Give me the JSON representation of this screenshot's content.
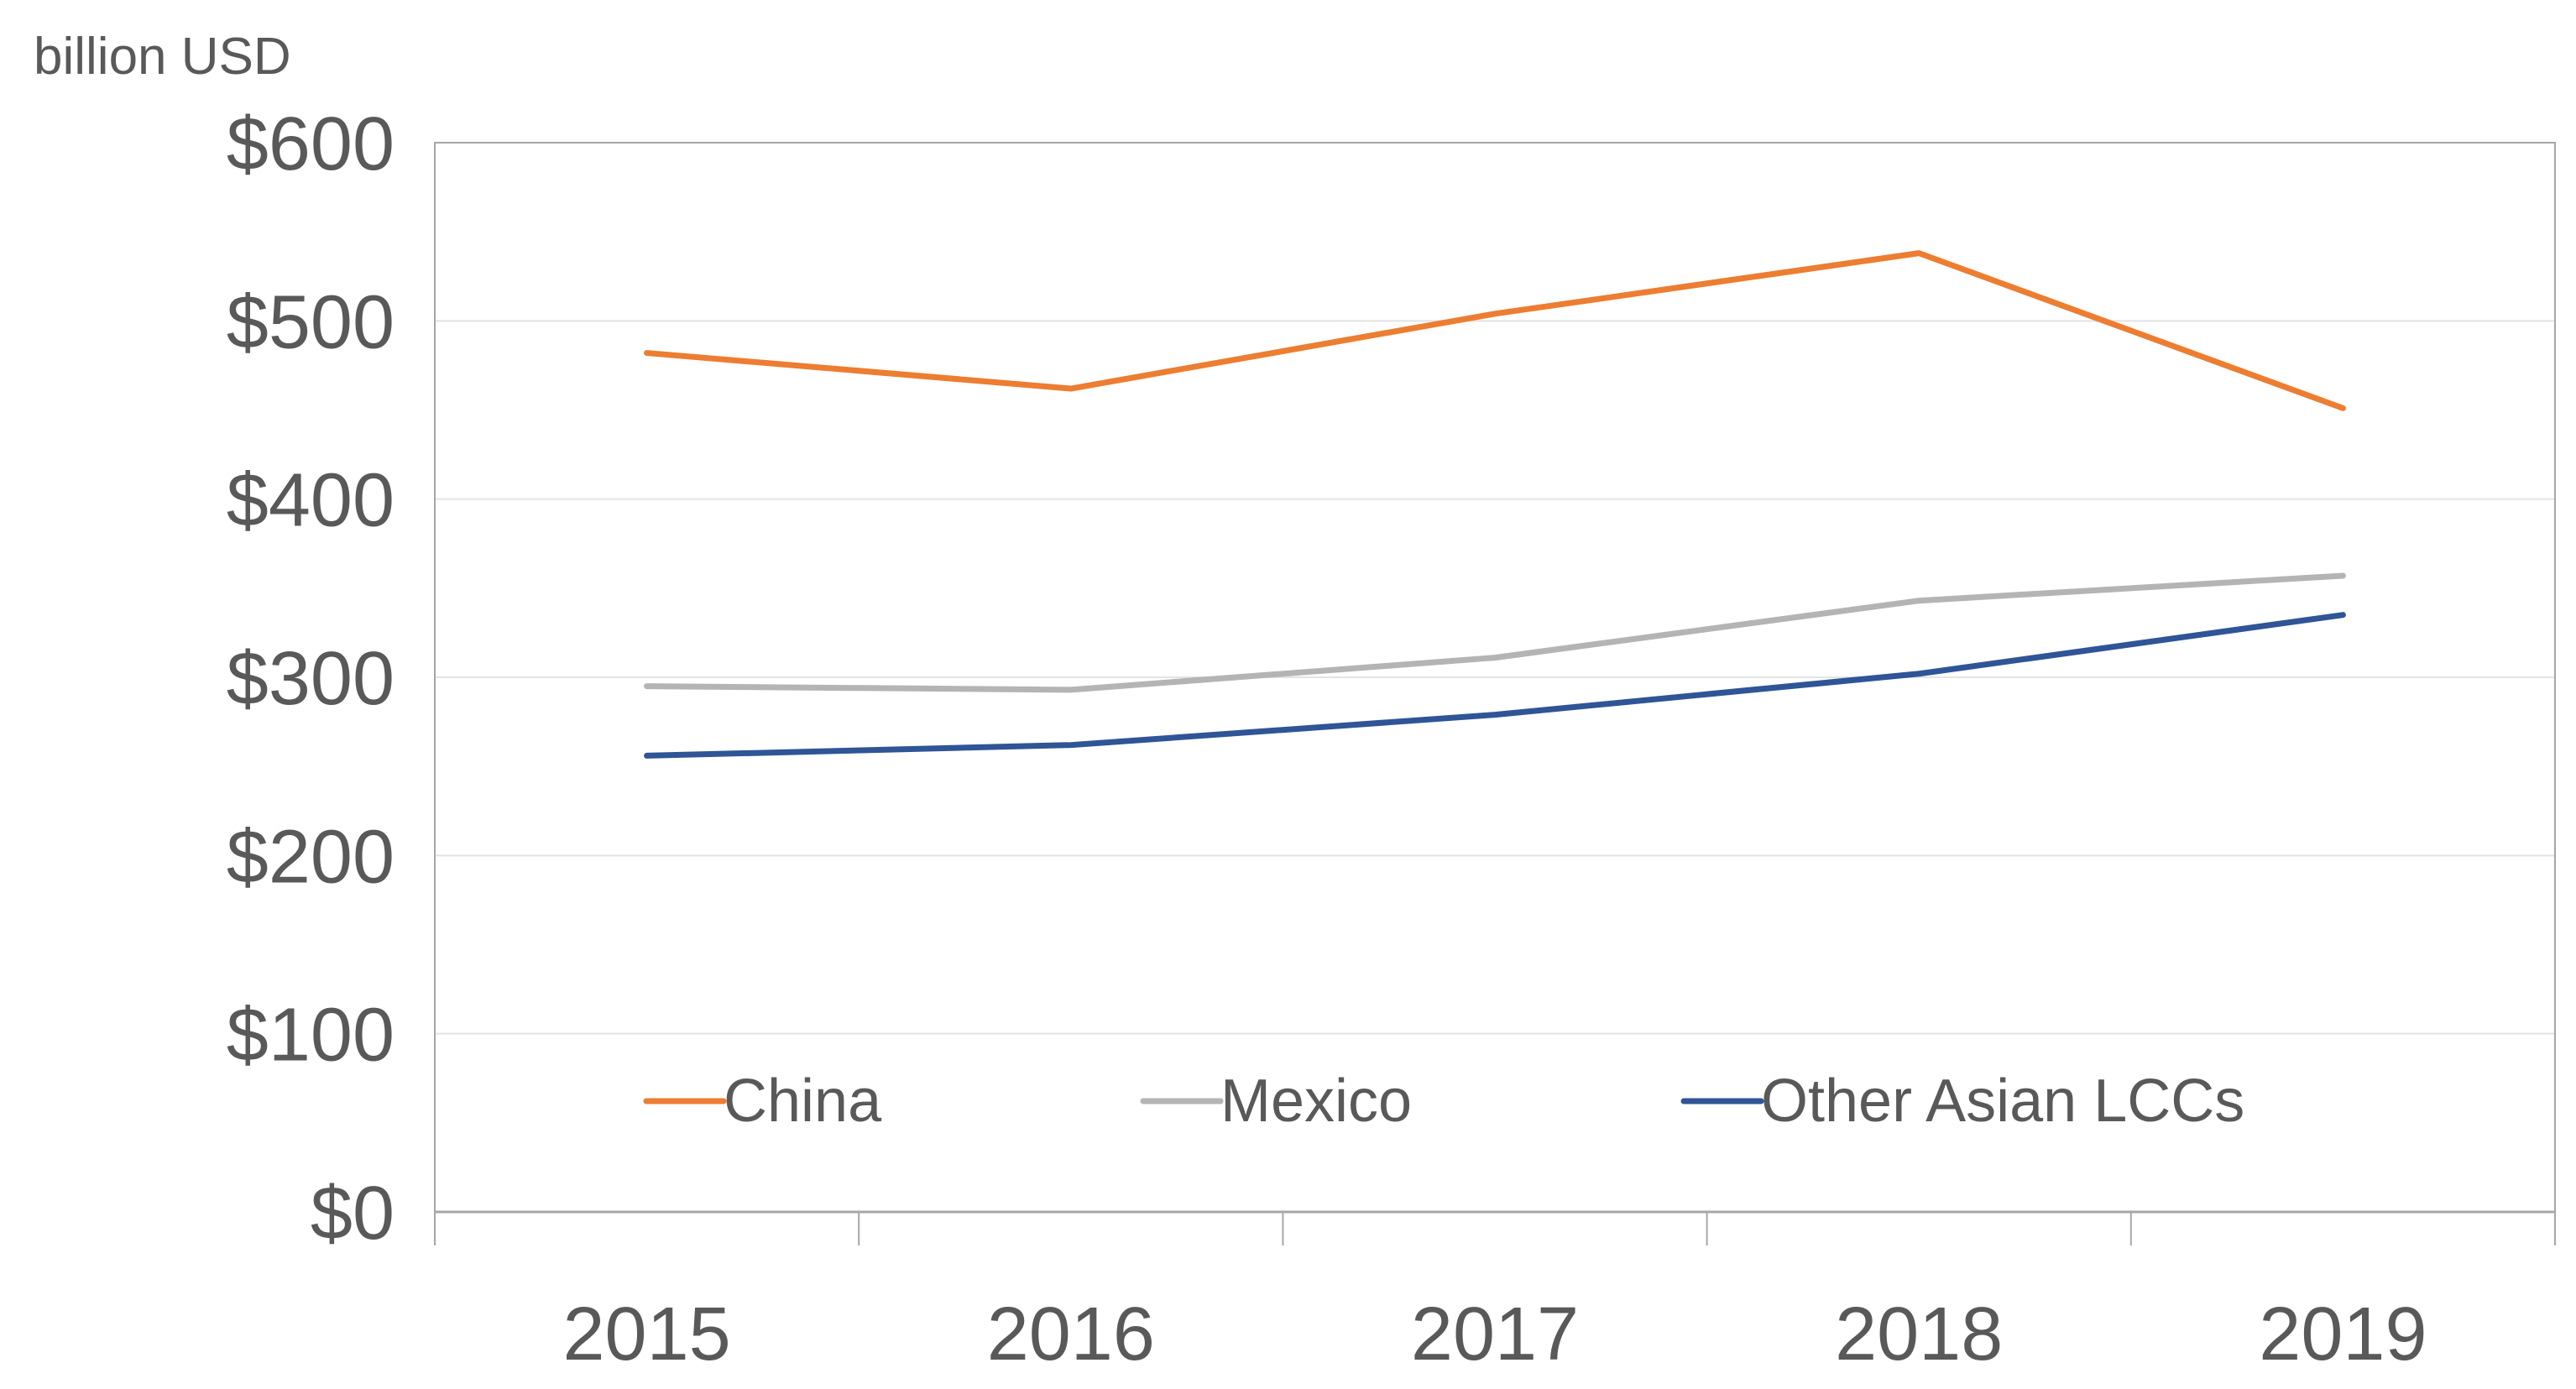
{
  "chart_data": {
    "type": "line",
    "ylabel": "billion USD",
    "categories": [
      "2015",
      "2016",
      "2017",
      "2018",
      "2019"
    ],
    "ylim": [
      0,
      600
    ],
    "yticks": [
      0,
      100,
      200,
      300,
      400,
      500,
      600
    ],
    "ytick_labels": [
      "$0",
      "$100",
      "$200",
      "$300",
      "$400",
      "$500",
      "$600"
    ],
    "grid": true,
    "legend_position": "bottom-inside",
    "series": [
      {
        "name": "China",
        "color": "#ED7D31",
        "values": [
          482,
          462,
          504,
          538,
          451
        ]
      },
      {
        "name": "Mexico",
        "color": "#B4B4B4",
        "values": [
          295,
          293,
          311,
          343,
          357
        ]
      },
      {
        "name": "Other Asian LCCs",
        "color": "#2F5597",
        "values": [
          256,
          262,
          279,
          302,
          335
        ]
      }
    ]
  }
}
